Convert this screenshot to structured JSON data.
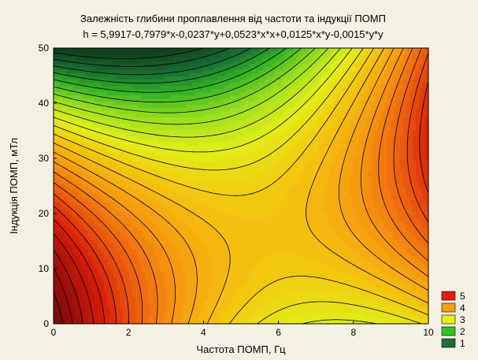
{
  "chart_data": {
    "type": "contour",
    "title": "Залежність глибини проплавлення від частоти та індукції ПОМП",
    "subtitle": "h = 5,9917-0,7979*x-0,0237*y+0,0523*x*x+0,0125*x*y-0,0015*y*y",
    "xlabel": "Частота ПОМП, Гц",
    "ylabel": "Індукція ПОМП, мТл",
    "xlim": [
      0,
      10
    ],
    "ylim": [
      0,
      50
    ],
    "xticks": [
      "0",
      "2",
      "4",
      "6",
      "8",
      "10"
    ],
    "yticks": [
      "0",
      "10",
      "20",
      "30",
      "40",
      "50"
    ],
    "coefficients": {
      "const": 5.9917,
      "x": -0.7979,
      "y": -0.0237,
      "xx": 0.0523,
      "xy": 0.0125,
      "yy": -0.0015
    },
    "legend": {
      "position": "bottom-right",
      "entries": [
        {
          "label": "5",
          "color": "#e81c0c"
        },
        {
          "label": "4",
          "color": "#f5a012"
        },
        {
          "label": "3",
          "color": "#e6ef18"
        },
        {
          "label": "2",
          "color": "#2ec224"
        },
        {
          "label": "1",
          "color": "#1c7034"
        }
      ]
    }
  }
}
